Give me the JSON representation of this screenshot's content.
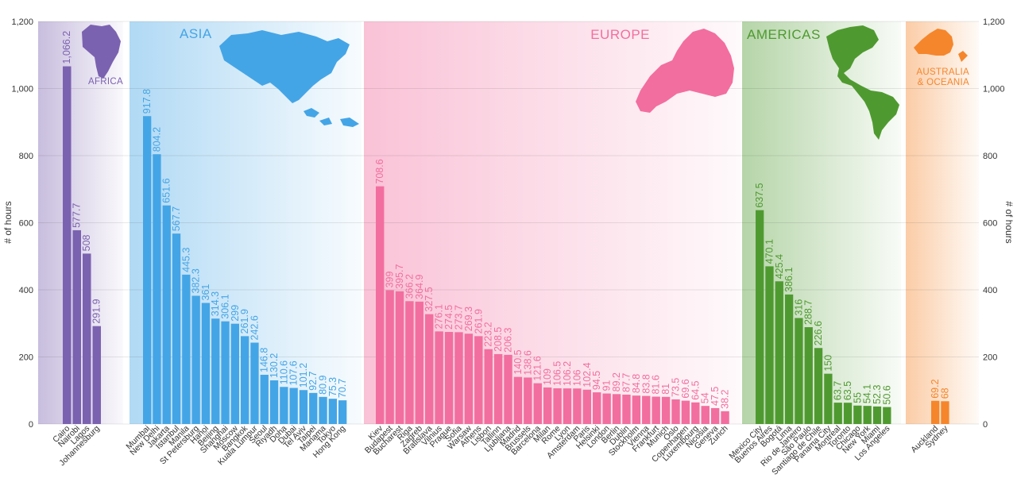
{
  "chart_data": {
    "type": "bar",
    "ylabel": "# of hours",
    "ylim": [
      0,
      1200
    ],
    "yticks": [
      "0",
      "200",
      "400",
      "600",
      "800",
      "1,000",
      "1,200"
    ],
    "grid": true,
    "regions": [
      {
        "name": "AFRICA",
        "color": "#7b62b0",
        "categories": [
          "Cairo",
          "Nairobi",
          "Lagos",
          "Johannesburg"
        ],
        "values": [
          1066.2,
          577.7,
          508,
          291.9
        ],
        "labels": [
          "1,066.2",
          "577.7",
          "508",
          "291.9"
        ]
      },
      {
        "name": "ASIA",
        "color": "#44a5e6",
        "categories": [
          "Mumbai",
          "New Delhi",
          "Jakarta",
          "Istanbul",
          "Manila",
          "St Petersburg",
          "Hanoi",
          "Beijing",
          "Shanghai",
          "Moscow",
          "Bangkok",
          "Kuala Lumpur",
          "Seoul",
          "Riyadh",
          "Doha",
          "Dubai",
          "Tel Aviv",
          "Taipei",
          "Manama",
          "Tokyo",
          "Hong Kong"
        ],
        "values": [
          917.8,
          804.2,
          651.6,
          567.7,
          445.3,
          382.3,
          361,
          314.3,
          306.1,
          299,
          261.9,
          242.6,
          146.8,
          130.2,
          110.6,
          107.6,
          101.2,
          92.7,
          80.9,
          75.3,
          70.7
        ],
        "labels": [
          "917.8",
          "804.2",
          "651.6",
          "567.7",
          "445.3",
          "382.3",
          "361",
          "314.3",
          "306.1",
          "299",
          "261.9",
          "242.6",
          "146.8",
          "130.2",
          "110.6",
          "107.6",
          "101.2",
          "92.7",
          "80.9",
          "75.3",
          "70.7"
        ]
      },
      {
        "name": "EUROPE",
        "color": "#f26e9e",
        "categories": [
          "Kiev",
          "Budapest",
          "Bucharest",
          "Riga",
          "Zagreb",
          "Bratislava",
          "Vilnius",
          "Prague",
          "Sofia",
          "Warsaw",
          "Athens",
          "Lisbon",
          "Tallinn",
          "Ljubljana",
          "Madrid",
          "Brussels",
          "Barcelona",
          "Milan",
          "Rome",
          "Lyon",
          "Amsterdam",
          "Paris",
          "Helsinki",
          "London",
          "Berlin",
          "Dublin",
          "Stockholm",
          "Vienna",
          "Frankfurt",
          "Munich",
          "Oslo",
          "Copenhagen",
          "Luxembourg",
          "Nicosia",
          "Geneva",
          "Zurich"
        ],
        "values": [
          708.6,
          399,
          395.7,
          366.2,
          364.9,
          327.5,
          276.1,
          274.5,
          273.7,
          269.3,
          261.9,
          223.2,
          208.5,
          206.3,
          140.5,
          138.6,
          121.6,
          109,
          106.5,
          106.2,
          106,
          102.4,
          94.5,
          91,
          89.2,
          87.7,
          84.8,
          83.8,
          81.6,
          81,
          73.5,
          69.6,
          64.5,
          54,
          47.5,
          38.2
        ],
        "labels": [
          "708.6",
          "399",
          "395.7",
          "366.2",
          "364.9",
          "327.5",
          "276.1",
          "274.5",
          "273.7",
          "269.3",
          "261.9",
          "223.2",
          "208.5",
          "206.3",
          "140.5",
          "138.6",
          "121.6",
          "109",
          "106.5",
          "106.2",
          "106",
          "102.4",
          "94.5",
          "91",
          "89.2",
          "87.7",
          "84.8",
          "83.8",
          "81.6",
          "81",
          "73.5",
          "69.6",
          "64.5",
          "54",
          "47.5",
          "38.2"
        ]
      },
      {
        "name": "AMERICAS",
        "color": "#4f9a30",
        "categories": [
          "Mexico City",
          "Buenos Aires",
          "Bogotá",
          "Lima",
          "Rio de Janeiro",
          "São Paulo",
          "Santiago de Chile",
          "Panama City",
          "Montreal",
          "Toronto",
          "Chicago",
          "New York",
          "Miami",
          "Los Angeles"
        ],
        "values": [
          637.5,
          470.1,
          425.4,
          386.1,
          316,
          288.7,
          226.6,
          150,
          63.7,
          63.5,
          55,
          54.1,
          52.3,
          50.6
        ],
        "labels": [
          "637.5",
          "470.1",
          "425.4",
          "386.1",
          "316",
          "288.7",
          "226.6",
          "150",
          "63.7",
          "63.5",
          "55",
          "54.1",
          "52.3",
          "50.6"
        ]
      },
      {
        "name": "AUSTRALIA & OCEANIA",
        "name_lines": [
          "AUSTRALIA",
          "& OCEANIA"
        ],
        "color": "#f5862c",
        "categories": [
          "Auckland",
          "Sydney"
        ],
        "values": [
          69.2,
          68
        ],
        "labels": [
          "69.2",
          "68"
        ]
      }
    ]
  },
  "icons": [
    "africa-map-icon",
    "asia-map-icon",
    "europe-map-icon",
    "americas-map-icon",
    "australia-map-icon"
  ]
}
